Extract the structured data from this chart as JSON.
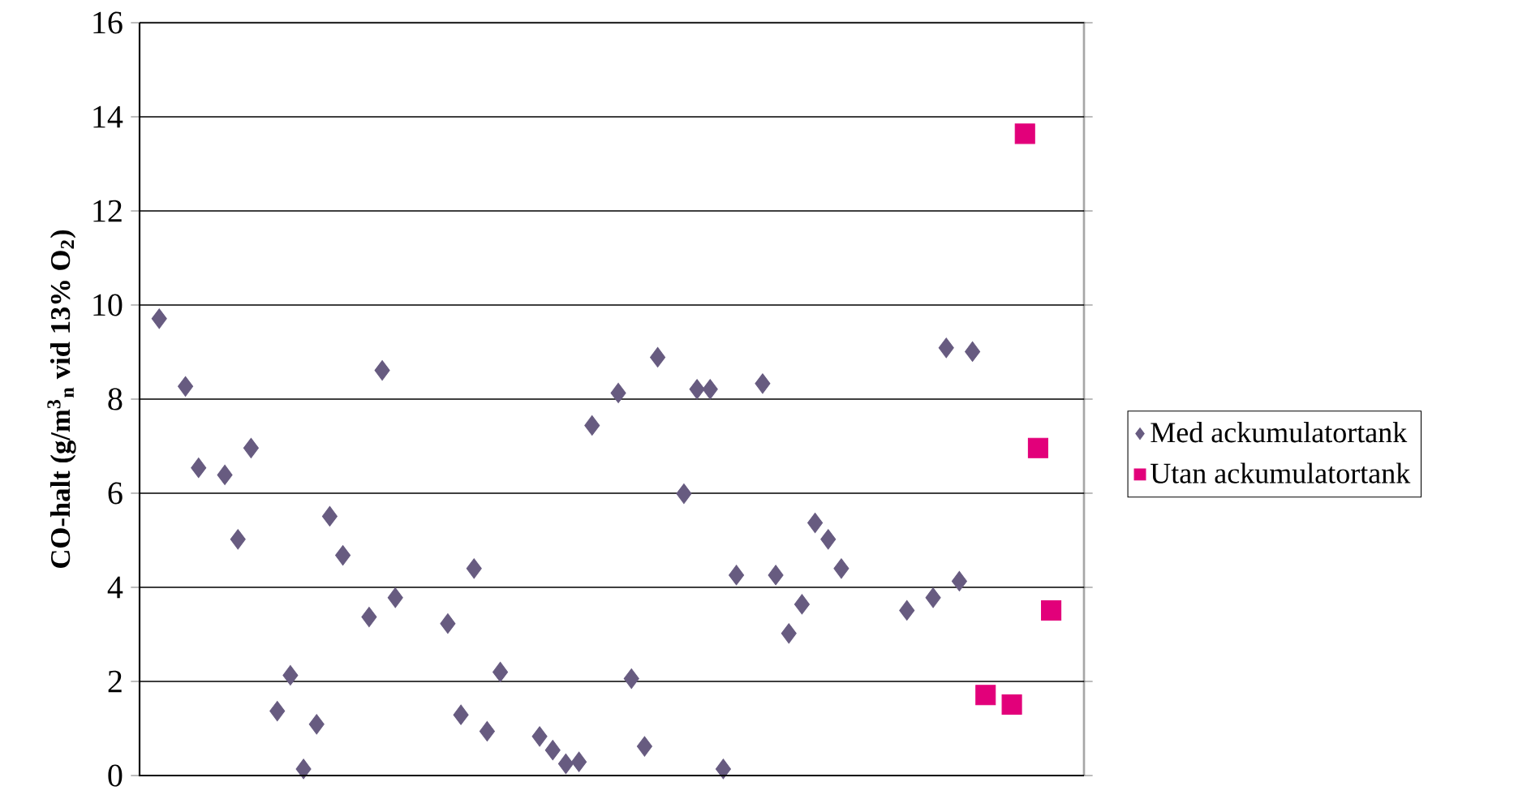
{
  "chart_data": {
    "type": "scatter",
    "ylabel": "CO-halt (g/m$^{3}$$_{n}$ vid 13% O$_{2}$)",
    "categories": [
      null,
      null,
      null,
      null,
      null,
      null,
      null,
      null,
      null,
      null,
      null,
      null,
      null,
      null,
      null,
      null,
      null,
      null,
      null,
      null,
      null,
      null,
      null,
      null,
      null,
      null,
      null,
      null,
      null,
      null,
      null,
      null,
      null,
      null,
      null,
      null,
      null,
      null,
      null,
      null,
      null,
      null,
      null,
      null,
      null,
      null,
      null,
      null,
      null,
      null,
      null,
      null,
      null,
      null,
      null,
      null,
      null,
      null,
      null,
      null,
      null,
      null,
      null,
      null,
      null,
      null,
      null,
      null,
      null,
      null,
      null,
      null
    ],
    "ylim": [
      0,
      16
    ],
    "yticks": [
      0,
      2,
      4,
      6,
      8,
      10,
      12,
      14,
      16
    ],
    "grid": "y",
    "legend": "right",
    "tick_labels": "y",
    "series": [
      {
        "name": "Med ackumulatortank",
        "color": "#675b80",
        "marker": "diamond",
        "values": [
          null,
          9.71,
          null,
          8.27,
          6.54,
          null,
          6.39,
          5.02,
          6.96,
          null,
          1.37,
          2.13,
          0.14,
          1.09,
          5.51,
          4.68,
          null,
          3.37,
          8.61,
          3.78,
          null,
          null,
          null,
          3.23,
          1.29,
          4.4,
          0.94,
          2.2,
          null,
          null,
          0.83,
          0.54,
          0.25,
          0.29,
          7.44,
          null,
          8.13,
          2.06,
          0.62,
          8.89,
          null,
          5.99,
          8.21,
          8.21,
          0.14,
          4.26,
          null,
          8.33,
          4.26,
          3.02,
          3.64,
          5.37,
          5.02,
          4.4,
          null,
          null,
          null,
          null,
          3.51,
          null,
          3.78,
          9.09,
          4.13,
          9.01,
          null,
          null,
          null,
          null,
          null,
          null,
          null,
          null
        ]
      },
      {
        "name": "Utan ackumulatortank",
        "color": "#e2007a",
        "marker": "square",
        "values": [
          null,
          null,
          null,
          null,
          null,
          null,
          null,
          null,
          null,
          null,
          null,
          null,
          null,
          null,
          null,
          null,
          null,
          null,
          null,
          null,
          null,
          null,
          null,
          null,
          null,
          null,
          null,
          null,
          null,
          null,
          null,
          null,
          null,
          null,
          null,
          null,
          null,
          null,
          null,
          null,
          null,
          null,
          null,
          null,
          null,
          null,
          null,
          null,
          null,
          null,
          null,
          null,
          null,
          null,
          null,
          null,
          null,
          null,
          null,
          null,
          null,
          null,
          null,
          null,
          1.71,
          null,
          1.51,
          13.64,
          6.96,
          3.51,
          null,
          null
        ]
      }
    ]
  }
}
